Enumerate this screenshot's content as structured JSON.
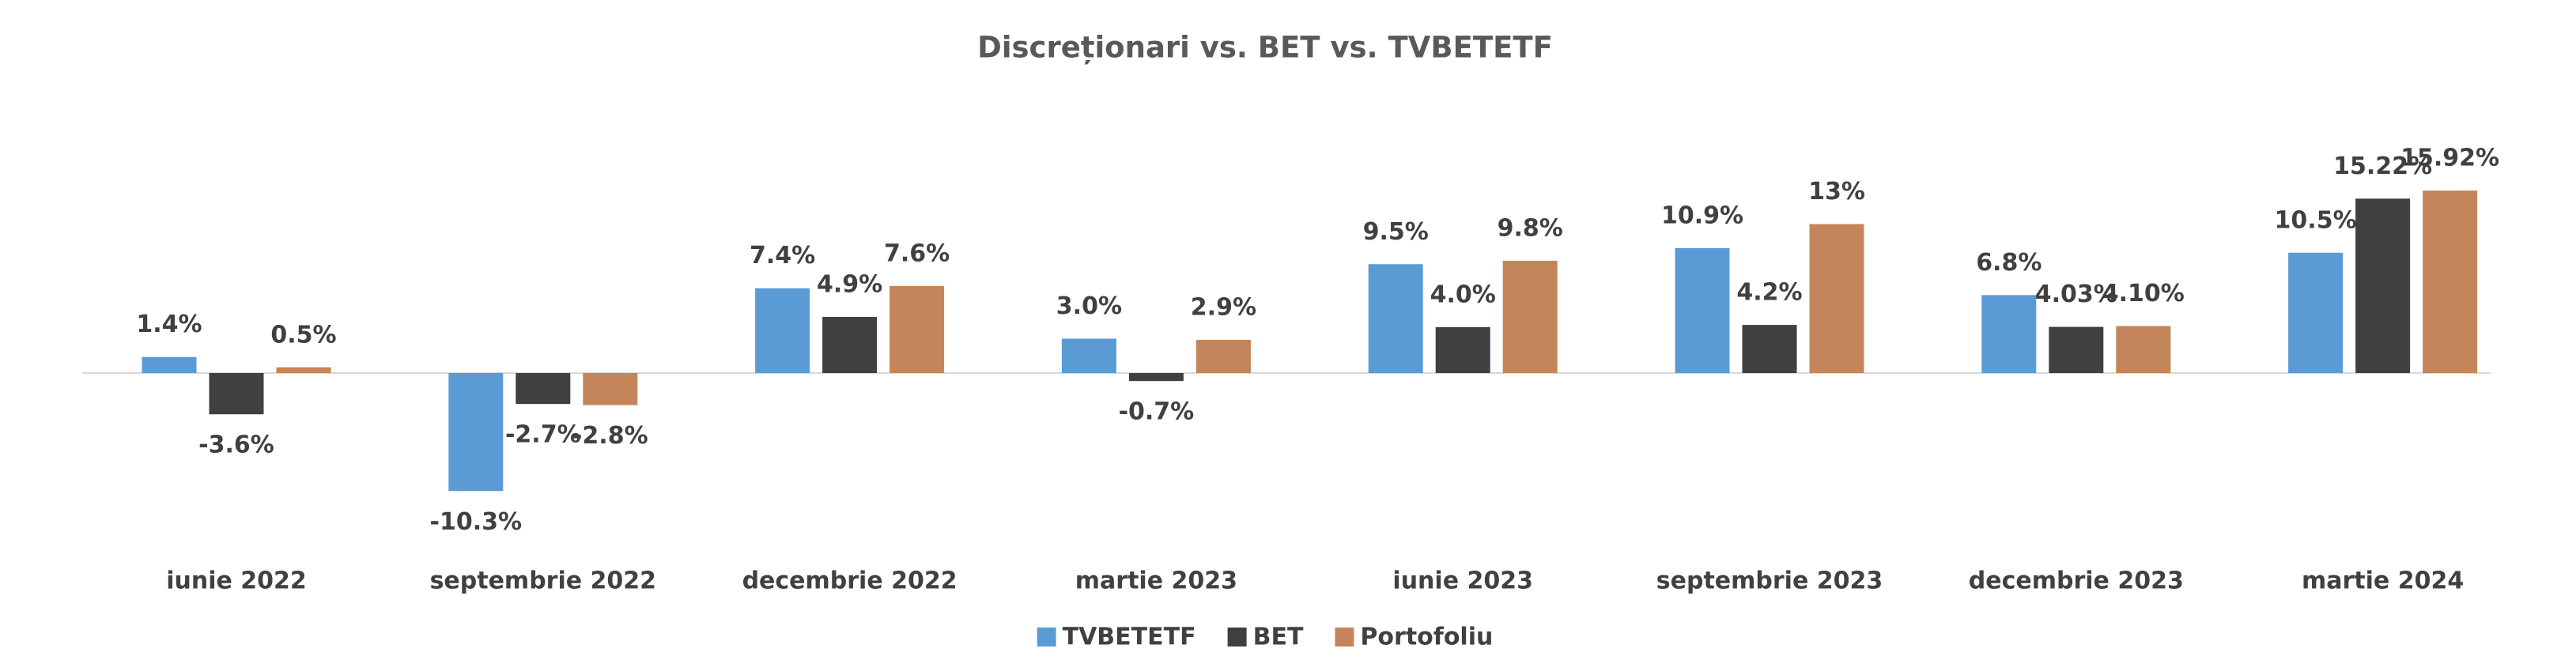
{
  "chart_data": {
    "type": "bar",
    "title": "Discreționari vs. BET vs. TVBETETF",
    "categories": [
      "iunie 2022",
      "septembrie 2022",
      "decembrie 2022",
      "martie 2023",
      "iunie 2023",
      "septembrie 2023",
      "decembrie 2023",
      "martie 2024"
    ],
    "series": [
      {
        "name": "TVBETETF",
        "color": "#5b9bd5",
        "values": [
          1.4,
          -10.3,
          7.4,
          3.0,
          9.5,
          10.9,
          6.8,
          10.5
        ],
        "value_labels": [
          "1.4%",
          "-10.3%",
          "7.4%",
          "3.0%",
          "9.5%",
          "10.9%",
          "6.8%",
          "10.5%"
        ]
      },
      {
        "name": "BET",
        "color": "#404040",
        "values": [
          -3.6,
          -2.7,
          4.9,
          -0.7,
          4.0,
          4.2,
          4.03,
          15.22
        ],
        "value_labels": [
          "-3.6%",
          "-2.7%",
          "4.9%",
          "-0.7%",
          "4.0%",
          "4.2%",
          "4.03%",
          "15.22%"
        ]
      },
      {
        "name": "Portofoliu",
        "color": "#c4855a",
        "values": [
          0.5,
          -2.8,
          7.6,
          2.9,
          9.8,
          13,
          4.1,
          15.92
        ],
        "value_labels": [
          "0.5%",
          "-2.8%",
          "7.6%",
          "2.9%",
          "9.8%",
          "13%",
          "4.10%",
          "15.92%"
        ]
      }
    ],
    "legend": "bottom"
  }
}
